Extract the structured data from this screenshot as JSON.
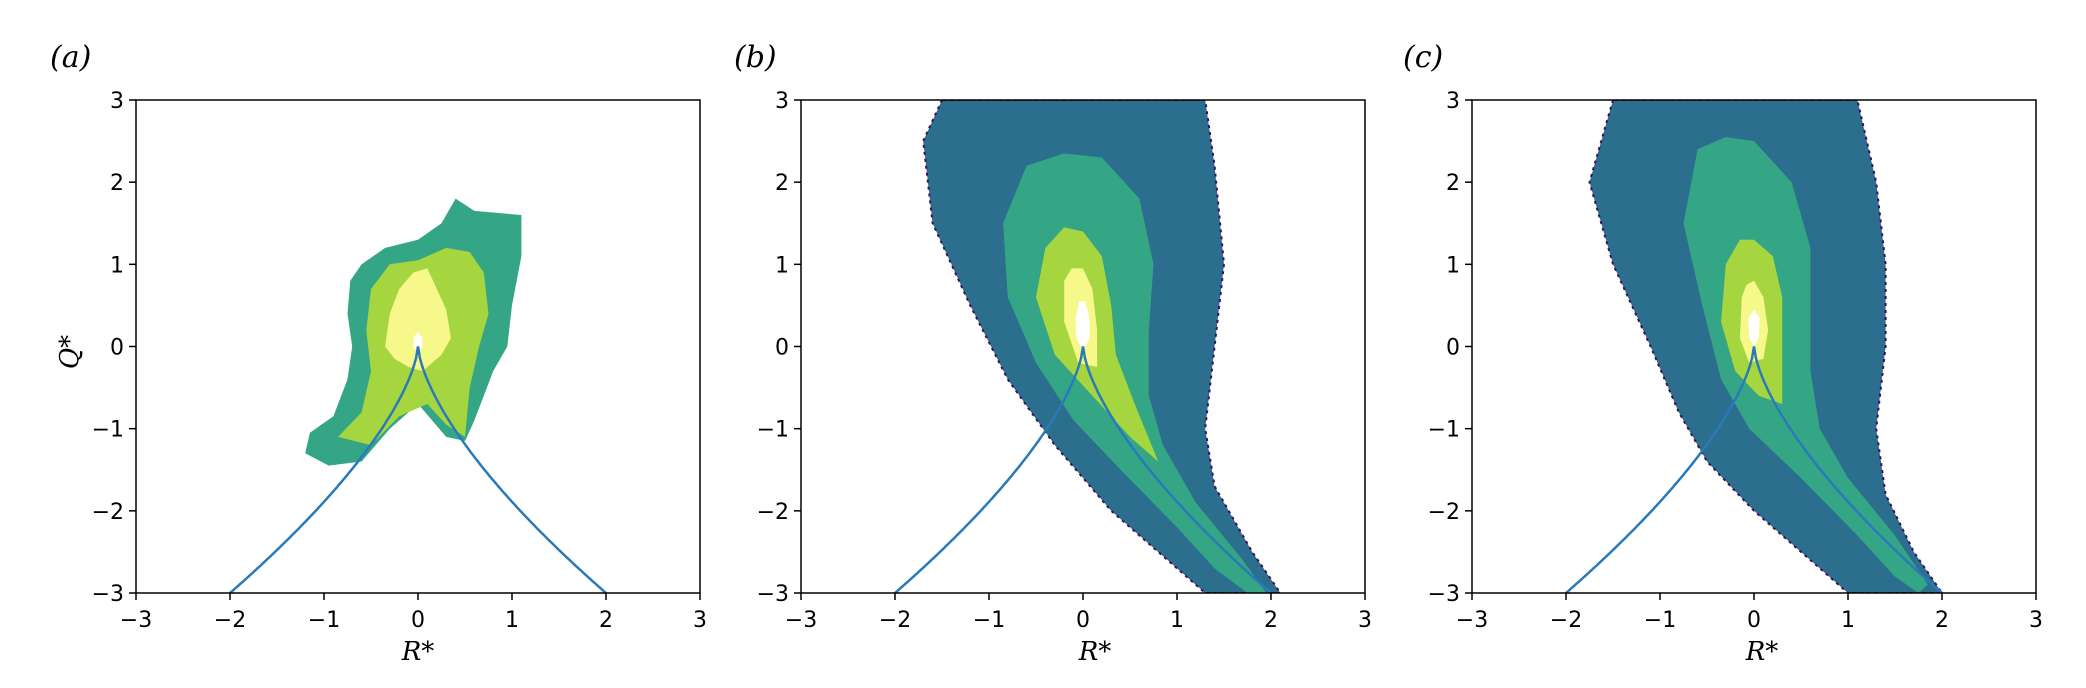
{
  "colors": {
    "curve": "#2a7ab9",
    "levels": [
      "#3e0f5a",
      "#2c6e8e",
      "#34a685",
      "#a6d63f",
      "#f6f98a",
      "#ffffff"
    ]
  },
  "chart_data": [
    {
      "type": "contour",
      "panel_label": "(a)",
      "xlabel": "R*",
      "ylabel": "Q*",
      "xlim": [
        -3,
        3
      ],
      "ylim": [
        -3,
        3
      ],
      "xticks": [
        "−3",
        "−2",
        "−1",
        "0",
        "1",
        "2",
        "3"
      ],
      "yticks": [
        "−3",
        "−2",
        "−1",
        "0",
        "1",
        "2",
        "3"
      ],
      "vieillefosse_curve": {
        "x_range": [
          -2,
          2
        ],
        "y_at_edges": -3,
        "cusp": [
          0,
          0
        ]
      },
      "contour_levels": [
        {
          "level": 2,
          "points": [
            [
              -1.2,
              -1.3
            ],
            [
              -1.15,
              -1.05
            ],
            [
              -0.9,
              -0.85
            ],
            [
              -0.75,
              -0.4
            ],
            [
              -0.7,
              0.0
            ],
            [
              -0.75,
              0.4
            ],
            [
              -0.72,
              0.8
            ],
            [
              -0.6,
              1.0
            ],
            [
              -0.35,
              1.2
            ],
            [
              0.0,
              1.3
            ],
            [
              0.25,
              1.5
            ],
            [
              0.4,
              1.8
            ],
            [
              0.6,
              1.65
            ],
            [
              1.1,
              1.6
            ],
            [
              1.1,
              1.1
            ],
            [
              1.0,
              0.5
            ],
            [
              0.95,
              0.0
            ],
            [
              0.8,
              -0.3
            ],
            [
              0.6,
              -0.9
            ],
            [
              0.5,
              -1.15
            ],
            [
              0.3,
              -1.1
            ],
            [
              0.15,
              -0.9
            ],
            [
              0.0,
              -0.7
            ],
            [
              -0.3,
              -1.0
            ],
            [
              -0.6,
              -1.4
            ],
            [
              -0.95,
              -1.45
            ]
          ]
        },
        {
          "level": 3,
          "points": [
            [
              -0.85,
              -1.1
            ],
            [
              -0.6,
              -0.8
            ],
            [
              -0.5,
              -0.3
            ],
            [
              -0.55,
              0.2
            ],
            [
              -0.5,
              0.7
            ],
            [
              -0.3,
              1.0
            ],
            [
              0.0,
              1.05
            ],
            [
              0.3,
              1.2
            ],
            [
              0.55,
              1.15
            ],
            [
              0.7,
              0.9
            ],
            [
              0.75,
              0.4
            ],
            [
              0.65,
              0.0
            ],
            [
              0.55,
              -0.5
            ],
            [
              0.5,
              -1.1
            ],
            [
              0.3,
              -0.95
            ],
            [
              0.1,
              -0.7
            ],
            [
              -0.2,
              -0.85
            ],
            [
              -0.5,
              -1.2
            ]
          ]
        },
        {
          "level": 4,
          "points": [
            [
              -0.35,
              0.0
            ],
            [
              -0.3,
              0.4
            ],
            [
              -0.2,
              0.7
            ],
            [
              -0.05,
              0.9
            ],
            [
              0.1,
              0.95
            ],
            [
              0.2,
              0.7
            ],
            [
              0.3,
              0.45
            ],
            [
              0.35,
              0.1
            ],
            [
              0.25,
              -0.1
            ],
            [
              0.15,
              -0.2
            ],
            [
              0.05,
              -0.3
            ],
            [
              -0.1,
              -0.25
            ],
            [
              -0.25,
              -0.15
            ]
          ]
        },
        {
          "level": 5,
          "points": [
            [
              -0.05,
              0.0
            ],
            [
              -0.04,
              0.12
            ],
            [
              0.0,
              0.18
            ],
            [
              0.04,
              0.12
            ],
            [
              0.05,
              0.0
            ],
            [
              0.02,
              -0.05
            ],
            [
              -0.02,
              -0.05
            ]
          ]
        }
      ]
    },
    {
      "type": "contour",
      "panel_label": "(b)",
      "xlabel": "R*",
      "ylabel": "",
      "xlim": [
        -3,
        3
      ],
      "ylim": [
        -3,
        3
      ],
      "xticks": [
        "−3",
        "−2",
        "−1",
        "0",
        "1",
        "2",
        "3"
      ],
      "yticks": [
        "−3",
        "−2",
        "−1",
        "0",
        "1",
        "2",
        "3"
      ],
      "vieillefosse_curve": {
        "x_range": [
          -2,
          2
        ],
        "y_at_edges": -3,
        "cusp": [
          0,
          0
        ]
      },
      "contour_levels": [
        {
          "level": 1,
          "points": [
            [
              -1.5,
              3.0
            ],
            [
              -1.7,
              2.5
            ],
            [
              -1.6,
              1.5
            ],
            [
              -1.2,
              0.5
            ],
            [
              -0.8,
              -0.4
            ],
            [
              -0.3,
              -1.2
            ],
            [
              0.3,
              -2.0
            ],
            [
              0.9,
              -2.6
            ],
            [
              1.3,
              -3.0
            ],
            [
              2.1,
              -3.0
            ],
            [
              1.8,
              -2.5
            ],
            [
              1.4,
              -1.7
            ],
            [
              1.3,
              -1.0
            ],
            [
              1.4,
              0.0
            ],
            [
              1.5,
              1.0
            ],
            [
              1.4,
              2.2
            ],
            [
              1.3,
              3.0
            ]
          ]
        },
        {
          "level": 2,
          "points": [
            [
              -0.6,
              2.2
            ],
            [
              -0.85,
              1.5
            ],
            [
              -0.8,
              0.6
            ],
            [
              -0.5,
              -0.2
            ],
            [
              -0.1,
              -0.9
            ],
            [
              0.4,
              -1.5
            ],
            [
              1.0,
              -2.2
            ],
            [
              1.4,
              -2.7
            ],
            [
              1.75,
              -3.0
            ],
            [
              1.95,
              -3.0
            ],
            [
              1.7,
              -2.6
            ],
            [
              1.2,
              -1.9
            ],
            [
              0.85,
              -1.2
            ],
            [
              0.7,
              -0.6
            ],
            [
              0.7,
              0.2
            ],
            [
              0.75,
              1.0
            ],
            [
              0.6,
              1.8
            ],
            [
              0.2,
              2.3
            ],
            [
              -0.2,
              2.35
            ]
          ]
        },
        {
          "level": 3,
          "points": [
            [
              -0.4,
              1.2
            ],
            [
              -0.5,
              0.6
            ],
            [
              -0.3,
              -0.1
            ],
            [
              0.1,
              -0.6
            ],
            [
              0.5,
              -1.1
            ],
            [
              0.8,
              -1.4
            ],
            [
              0.55,
              -0.7
            ],
            [
              0.35,
              -0.1
            ],
            [
              0.3,
              0.5
            ],
            [
              0.2,
              1.1
            ],
            [
              0.0,
              1.4
            ],
            [
              -0.2,
              1.45
            ]
          ]
        },
        {
          "level": 4,
          "points": [
            [
              -0.2,
              0.8
            ],
            [
              -0.2,
              0.3
            ],
            [
              -0.05,
              -0.2
            ],
            [
              0.15,
              -0.25
            ],
            [
              0.15,
              0.2
            ],
            [
              0.1,
              0.7
            ],
            [
              0.0,
              0.95
            ],
            [
              -0.12,
              0.95
            ]
          ]
        },
        {
          "level": 5,
          "points": [
            [
              -0.08,
              0.35
            ],
            [
              -0.07,
              0.1
            ],
            [
              0.0,
              -0.05
            ],
            [
              0.07,
              0.1
            ],
            [
              0.07,
              0.35
            ],
            [
              0.02,
              0.55
            ],
            [
              -0.04,
              0.55
            ]
          ]
        }
      ]
    },
    {
      "type": "contour",
      "panel_label": "(c)",
      "xlabel": "R*",
      "ylabel": "",
      "xlim": [
        -3,
        3
      ],
      "ylim": [
        -3,
        3
      ],
      "xticks": [
        "−3",
        "−2",
        "−1",
        "0",
        "1",
        "2",
        "3"
      ],
      "yticks": [
        "−3",
        "−2",
        "−1",
        "0",
        "1",
        "2",
        "3"
      ],
      "vieillefosse_curve": {
        "x_range": [
          -2,
          2
        ],
        "y_at_edges": -3,
        "cusp": [
          0,
          0
        ]
      },
      "contour_levels": [
        {
          "level": 1,
          "points": [
            [
              -1.5,
              3.0
            ],
            [
              -1.75,
              2.0
            ],
            [
              -1.5,
              1.0
            ],
            [
              -1.1,
              0.0
            ],
            [
              -0.8,
              -0.8
            ],
            [
              -0.5,
              -1.4
            ],
            [
              0.0,
              -2.0
            ],
            [
              0.6,
              -2.6
            ],
            [
              1.0,
              -3.0
            ],
            [
              2.0,
              -3.0
            ],
            [
              1.7,
              -2.5
            ],
            [
              1.4,
              -1.8
            ],
            [
              1.3,
              -1.0
            ],
            [
              1.4,
              0.0
            ],
            [
              1.4,
              1.0
            ],
            [
              1.3,
              2.0
            ],
            [
              1.1,
              3.0
            ]
          ]
        },
        {
          "level": 2,
          "points": [
            [
              -0.6,
              2.4
            ],
            [
              -0.75,
              1.5
            ],
            [
              -0.55,
              0.5
            ],
            [
              -0.35,
              -0.4
            ],
            [
              -0.05,
              -1.0
            ],
            [
              0.5,
              -1.6
            ],
            [
              1.1,
              -2.3
            ],
            [
              1.5,
              -2.8
            ],
            [
              1.75,
              -3.0
            ],
            [
              1.85,
              -2.9
            ],
            [
              1.5,
              -2.3
            ],
            [
              1.0,
              -1.6
            ],
            [
              0.7,
              -1.0
            ],
            [
              0.6,
              -0.3
            ],
            [
              0.6,
              0.5
            ],
            [
              0.6,
              1.2
            ],
            [
              0.4,
              2.0
            ],
            [
              0.0,
              2.5
            ],
            [
              -0.3,
              2.55
            ]
          ]
        },
        {
          "level": 3,
          "points": [
            [
              -0.3,
              1.0
            ],
            [
              -0.35,
              0.3
            ],
            [
              -0.2,
              -0.3
            ],
            [
              0.05,
              -0.6
            ],
            [
              0.3,
              -0.7
            ],
            [
              0.3,
              0.0
            ],
            [
              0.3,
              0.6
            ],
            [
              0.2,
              1.1
            ],
            [
              0.0,
              1.3
            ],
            [
              -0.15,
              1.3
            ]
          ]
        },
        {
          "level": 4,
          "points": [
            [
              -0.13,
              0.6
            ],
            [
              -0.15,
              0.1
            ],
            [
              -0.05,
              -0.2
            ],
            [
              0.1,
              -0.15
            ],
            [
              0.15,
              0.2
            ],
            [
              0.1,
              0.6
            ],
            [
              0.0,
              0.8
            ],
            [
              -0.08,
              0.75
            ]
          ]
        },
        {
          "level": 5,
          "points": [
            [
              -0.06,
              0.35
            ],
            [
              -0.05,
              0.1
            ],
            [
              0.0,
              0.0
            ],
            [
              0.05,
              0.1
            ],
            [
              0.06,
              0.35
            ],
            [
              0.0,
              0.45
            ]
          ]
        }
      ]
    }
  ]
}
